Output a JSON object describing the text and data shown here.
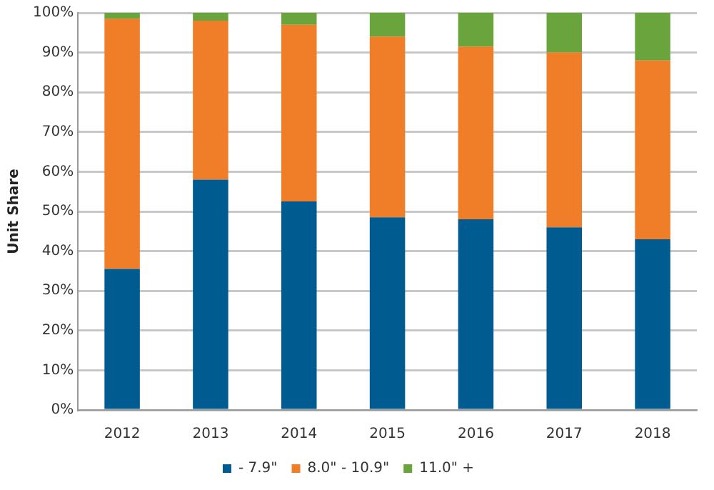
{
  "chart_data": {
    "type": "bar",
    "stacked": true,
    "ylabel": "Unit Share",
    "categories": [
      "2012",
      "2013",
      "2014",
      "2015",
      "2016",
      "2017",
      "2018"
    ],
    "series": [
      {
        "name": "- 7.9\"",
        "color": "#005b91",
        "values": [
          35.5,
          58,
          52.5,
          48.5,
          48,
          46,
          43
        ]
      },
      {
        "name": "8.0\" - 10.9\"",
        "color": "#f07d28",
        "values": [
          63,
          40,
          44.5,
          45.5,
          43.5,
          44,
          45
        ]
      },
      {
        "name": "11.0\" +",
        "color": "#69a53c",
        "values": [
          1.5,
          2,
          3,
          6,
          8.5,
          10,
          12
        ]
      }
    ],
    "ylim": [
      0,
      100
    ],
    "yticks": [
      {
        "value": 0,
        "label": "0%"
      },
      {
        "value": 10,
        "label": "10%"
      },
      {
        "value": 20,
        "label": "20%"
      },
      {
        "value": 30,
        "label": "30%"
      },
      {
        "value": 40,
        "label": "40%"
      },
      {
        "value": 50,
        "label": "50%"
      },
      {
        "value": 60,
        "label": "60%"
      },
      {
        "value": 70,
        "label": "70%"
      },
      {
        "value": 80,
        "label": "80%"
      },
      {
        "value": 90,
        "label": "90%"
      },
      {
        "value": 100,
        "label": "100%"
      }
    ],
    "grid": "y",
    "legend": "bottom"
  }
}
